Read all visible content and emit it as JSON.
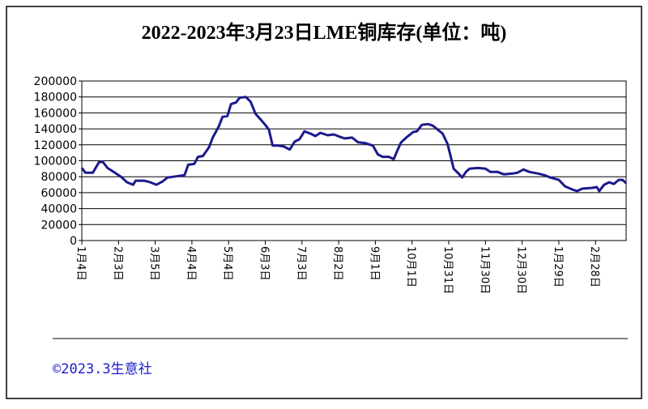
{
  "chart_data": {
    "type": "line",
    "title": "2022-2023年3月23日LME铜库存(单位：吨)",
    "footer": "©2023.3生意社",
    "xlim": [
      0,
      445
    ],
    "ylim": [
      0,
      200000
    ],
    "yticks": [
      0,
      20000,
      40000,
      60000,
      80000,
      100000,
      120000,
      140000,
      160000,
      180000,
      200000
    ],
    "xticks": [
      {
        "value": 0,
        "label": "1月4日"
      },
      {
        "value": 30,
        "label": "2月3日"
      },
      {
        "value": 60,
        "label": "3月5日"
      },
      {
        "value": 90,
        "label": "4月4日"
      },
      {
        "value": 120,
        "label": "5月4日"
      },
      {
        "value": 150,
        "label": "6月3日"
      },
      {
        "value": 180,
        "label": "7月3日"
      },
      {
        "value": 210,
        "label": "8月2日"
      },
      {
        "value": 240,
        "label": "9月1日"
      },
      {
        "value": 270,
        "label": "10月1日"
      },
      {
        "value": 300,
        "label": "10月31日"
      },
      {
        "value": 330,
        "label": "11月30日"
      },
      {
        "value": 360,
        "label": "12月30日"
      },
      {
        "value": 390,
        "label": "1月29日"
      },
      {
        "value": 420,
        "label": "2月28日"
      }
    ],
    "grid": true,
    "color": "#1a1a8c",
    "x": [
      0,
      3,
      9,
      14,
      17,
      21,
      26,
      32,
      37,
      42,
      44,
      51,
      56,
      61,
      66,
      70,
      75,
      84,
      87,
      92,
      95,
      99,
      104,
      107,
      112,
      115,
      119,
      122,
      126,
      129,
      134,
      138,
      142,
      146,
      150,
      153,
      156,
      161,
      165,
      170,
      174,
      178,
      182,
      187,
      191,
      195,
      201,
      206,
      211,
      215,
      221,
      226,
      232,
      238,
      242,
      246,
      251,
      255,
      258,
      261,
      266,
      271,
      274,
      278,
      283,
      287,
      291,
      295,
      299,
      301,
      304,
      308,
      311,
      314,
      317,
      324,
      330,
      334,
      340,
      345,
      352,
      356,
      361,
      366,
      373,
      378,
      383,
      390,
      395,
      401,
      405,
      409,
      417,
      421,
      423,
      427,
      431,
      435,
      439,
      442,
      445
    ],
    "values": [
      91000,
      85000,
      85000,
      98000,
      99000,
      91000,
      86000,
      80000,
      73000,
      70000,
      75000,
      75000,
      73000,
      70000,
      74000,
      79000,
      80000,
      82000,
      95000,
      96000,
      105000,
      106000,
      117000,
      129000,
      143000,
      155000,
      156000,
      171000,
      173000,
      179000,
      180000,
      174000,
      159000,
      152000,
      145000,
      139000,
      119000,
      119000,
      118000,
      114000,
      124000,
      127000,
      137000,
      134000,
      131000,
      135000,
      132000,
      133000,
      130000,
      128000,
      129000,
      123000,
      122000,
      119000,
      108000,
      105000,
      105000,
      102000,
      113000,
      123000,
      130000,
      136000,
      137000,
      145000,
      146000,
      144000,
      139000,
      134000,
      121000,
      109000,
      90000,
      84000,
      79000,
      86000,
      90000,
      91000,
      90000,
      86000,
      86000,
      83000,
      84000,
      85000,
      89000,
      86000,
      84000,
      82000,
      79000,
      76000,
      68000,
      64000,
      62000,
      65000,
      66000,
      67000,
      62000,
      70000,
      73000,
      71000,
      76000,
      76000,
      72000
    ]
  }
}
